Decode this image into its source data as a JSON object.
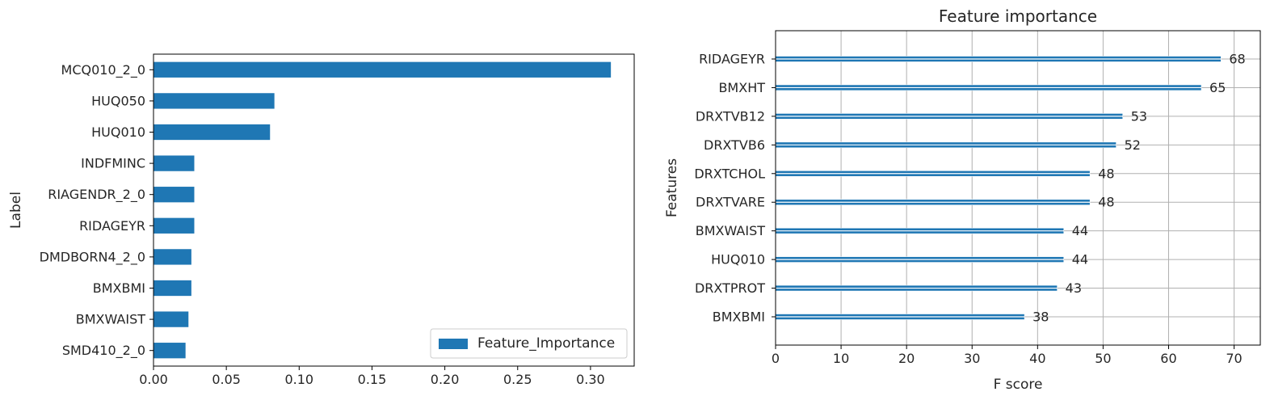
{
  "chart_data": [
    {
      "type": "bar",
      "orientation": "horizontal",
      "title": "",
      "xlabel": "",
      "ylabel": "Label",
      "xlim": [
        0,
        0.33
      ],
      "x_ticks": [
        "0.00",
        "0.05",
        "0.10",
        "0.15",
        "0.20",
        "0.25",
        "0.30"
      ],
      "categories": [
        "MCQ010_2_0",
        "HUQ050",
        "HUQ010",
        "INDFMINC",
        "RIAGENDR_2_0",
        "RIDAGEYR",
        "DMDBORN4_2_0",
        "BMXBMI",
        "BMXWAIST",
        "SMD410_2_0"
      ],
      "series": [
        {
          "name": "Feature_Importance",
          "values": [
            0.314,
            0.083,
            0.08,
            0.028,
            0.028,
            0.028,
            0.026,
            0.026,
            0.024,
            0.022
          ],
          "color": "#1f77b4"
        }
      ],
      "legend": {
        "position": "bottom-right",
        "label": "Feature_Importance"
      },
      "grid": false
    },
    {
      "type": "bar",
      "orientation": "horizontal",
      "title": "Feature importance",
      "xlabel": "F score",
      "ylabel": "Features",
      "xlim": [
        0,
        74
      ],
      "x_ticks": [
        "0",
        "10",
        "20",
        "30",
        "40",
        "50",
        "60",
        "70"
      ],
      "categories": [
        "RIDAGEYR",
        "BMXHT",
        "DRXTVB12",
        "DRXTVB6",
        "DRXTCHOL",
        "DRXTVARE",
        "BMXWAIST",
        "HUQ010",
        "DRXTPROT",
        "BMXBMI"
      ],
      "series": [
        {
          "values": [
            68,
            65,
            53,
            52,
            48,
            48,
            44,
            44,
            43,
            38
          ],
          "color": "#1f77b4"
        }
      ],
      "data_labels": [
        "68",
        "65",
        "53",
        "52",
        "48",
        "48",
        "44",
        "44",
        "43",
        "38"
      ],
      "grid": true
    }
  ]
}
